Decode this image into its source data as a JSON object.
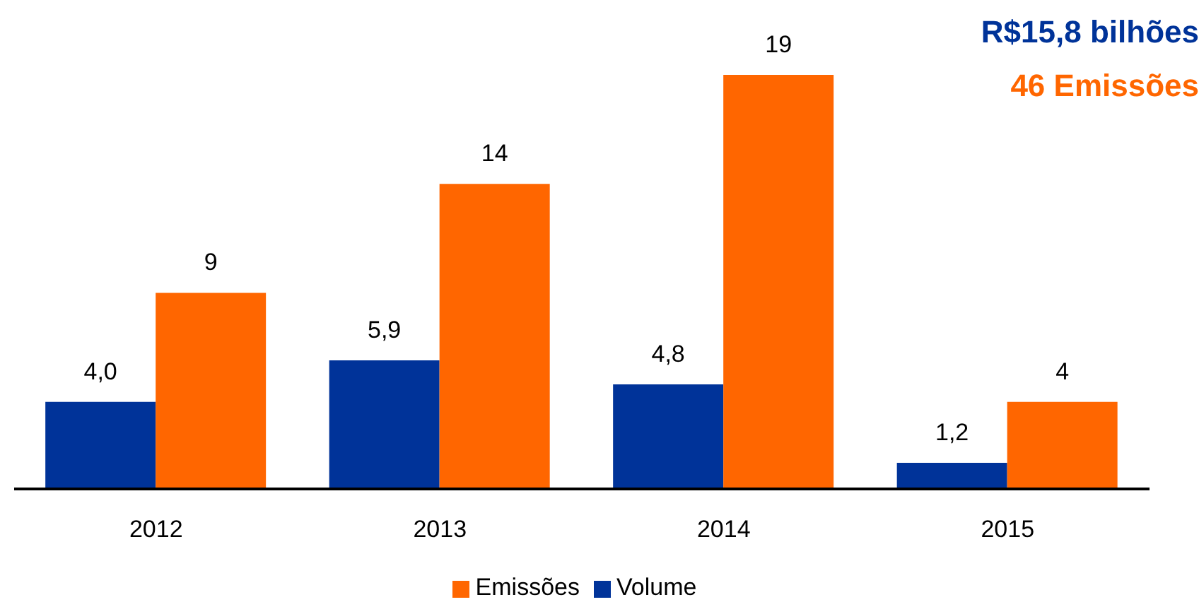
{
  "chart_data": {
    "type": "bar",
    "categories": [
      "2012",
      "2013",
      "2014",
      "2015"
    ],
    "series": [
      {
        "name": "Volume",
        "color": "#003399",
        "values": [
          4.0,
          5.9,
          4.8,
          1.2
        ],
        "value_labels": [
          "4,0",
          "5,9",
          "4,8",
          "1,2"
        ]
      },
      {
        "name": "Emissões",
        "color": "#ff6600",
        "values": [
          9,
          14,
          19,
          4
        ],
        "value_labels": [
          "9",
          "14",
          "19",
          "4"
        ]
      }
    ],
    "annotations": [
      "R$15,8 bilhões",
      "46 Emissões"
    ],
    "legend": "bottom",
    "grid": false
  }
}
